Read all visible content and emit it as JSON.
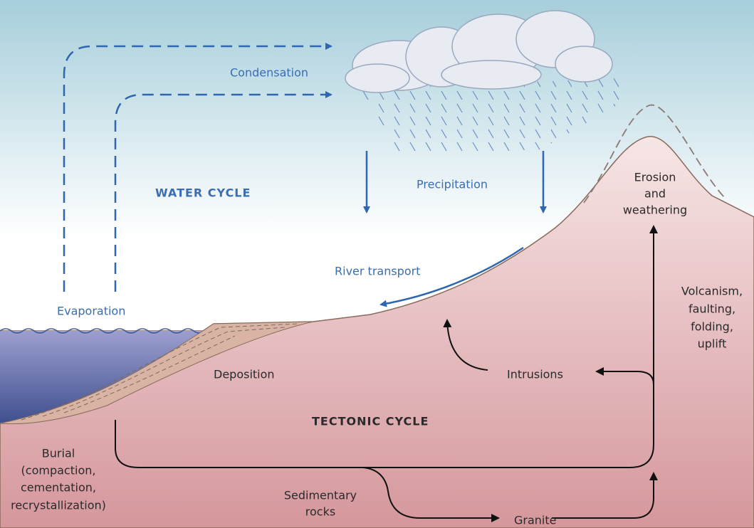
{
  "water_cycle": {
    "title": "WATER CYCLE",
    "condensation": "Condensation",
    "precipitation": "Precipitation",
    "evaporation": "Evaporation",
    "river_transport": "River transport"
  },
  "tectonic_cycle": {
    "title": "TECTONIC CYCLE",
    "erosion": [
      "Erosion",
      "and",
      "weathering"
    ],
    "volcanism": [
      "Volcanism,",
      "faulting,",
      "folding,",
      "uplift"
    ],
    "deposition": "Deposition",
    "intrusions": "Intrusions",
    "burial": [
      "Burial",
      "(compaction,",
      "cementation,",
      "recrystallization)"
    ],
    "sedimentary_rocks": [
      "Sedimentary",
      "rocks"
    ],
    "granite": "Granite"
  }
}
